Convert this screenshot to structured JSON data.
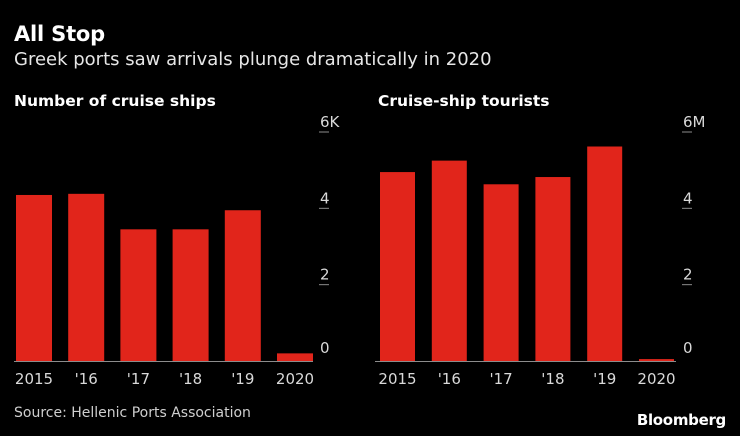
{
  "title": "All Stop",
  "subtitle": "Greek ports saw arrivals plunge dramatically in 2020",
  "source": "Source: Hellenic Ports Association",
  "logo": "Bloomberg",
  "colors": {
    "bar": "#e1251b",
    "axis": "#8c8c8c",
    "background": "#000000"
  },
  "chart_data": [
    {
      "type": "bar",
      "title": "Number of cruise ships",
      "categories": [
        "2015",
        "'16",
        "'17",
        "'18",
        "'19",
        "2020"
      ],
      "values": [
        4.35,
        4.38,
        3.45,
        3.45,
        3.95,
        0.2
      ],
      "unit": "thousand ships",
      "ylim": [
        0,
        6
      ],
      "yticks": [
        {
          "value": 6,
          "label": "6K"
        },
        {
          "value": 4,
          "label": "4"
        },
        {
          "value": 2,
          "label": "2"
        },
        {
          "value": 0,
          "label": "0"
        }
      ],
      "xlabel": "",
      "ylabel": ""
    },
    {
      "type": "bar",
      "title": "Cruise-ship tourists",
      "categories": [
        "2015",
        "'16",
        "'17",
        "'18",
        "'19",
        "2020"
      ],
      "values": [
        4.95,
        5.25,
        4.63,
        4.82,
        5.62,
        0.05
      ],
      "unit": "million tourists",
      "ylim": [
        0,
        6
      ],
      "yticks": [
        {
          "value": 6,
          "label": "6M"
        },
        {
          "value": 4,
          "label": "4"
        },
        {
          "value": 2,
          "label": "2"
        },
        {
          "value": 0,
          "label": "0"
        }
      ],
      "xlabel": "",
      "ylabel": ""
    }
  ]
}
